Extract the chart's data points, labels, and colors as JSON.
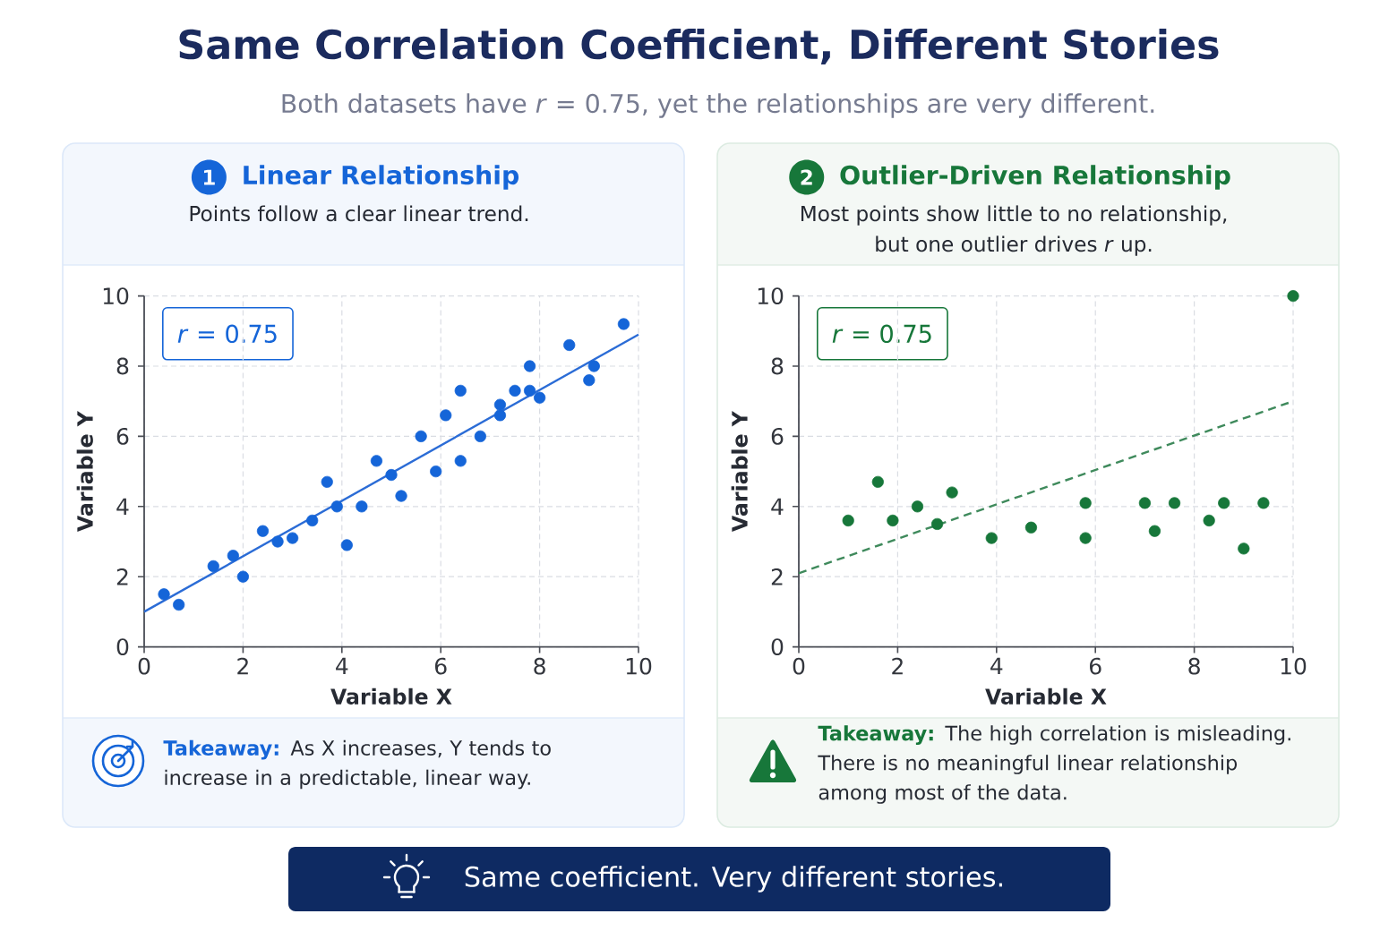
{
  "chart_data": [
    {
      "type": "other",
      "title": "Same Correlation Coefficient, Different Stories",
      "subtitle": "Both datasets have *r* = 0.75, yet the relationships are very different."
    },
    {
      "type": "scatter",
      "title": "Linear Relationship",
      "subtitle": "Points follow a clear linear trend.",
      "xlabel": "Variable X",
      "ylabel": "Variable Y",
      "xlim": [
        0,
        10
      ],
      "ylim": [
        0,
        10
      ],
      "xticks": [
        0,
        2,
        4,
        6,
        8,
        10
      ],
      "yticks": [
        0,
        2,
        4,
        6,
        8,
        10
      ],
      "grid": true,
      "annotations": [
        "1",
        "*r* = 0.75",
        "**Takeaway:** As X increases, Y tends to increase in a predictable, linear way."
      ],
      "series": [
        {
          "type": "scatter",
          "marker": "circle",
          "color": "#1565d8",
          "x": [
            0.4,
            0.7,
            1.4,
            1.8,
            2.0,
            2.4,
            2.7,
            3.0,
            3.4,
            3.7,
            3.9,
            4.1,
            4.4,
            4.7,
            5.0,
            5.2,
            5.6,
            5.9,
            6.1,
            6.4,
            6.4,
            6.8,
            7.2,
            7.2,
            7.5,
            7.8,
            7.8,
            8.0,
            8.6,
            9.0,
            9.1,
            9.7
          ],
          "values": [
            1.5,
            1.2,
            2.3,
            2.6,
            2.0,
            3.3,
            3.0,
            3.1,
            3.6,
            4.7,
            4.0,
            2.9,
            4.0,
            5.3,
            4.9,
            4.3,
            6.0,
            5.0,
            6.6,
            7.3,
            5.3,
            6.0,
            6.9,
            6.6,
            7.3,
            8.0,
            7.3,
            7.1,
            8.6,
            7.6,
            8.0,
            9.2
          ]
        },
        {
          "type": "line",
          "marker": "none",
          "line_style": "solid",
          "color": "#2b6cd6",
          "x": [
            0,
            10
          ],
          "values": [
            1.0,
            8.9
          ]
        }
      ]
    },
    {
      "type": "scatter",
      "title": "Outlier-Driven Relationship",
      "subtitle": "Most points show little to no relationship, but one outlier drives *r* up.",
      "xlabel": "Variable X",
      "ylabel": "Variable Y",
      "xlim": [
        0,
        10
      ],
      "ylim": [
        0,
        10
      ],
      "xticks": [
        0,
        2,
        4,
        6,
        8,
        10
      ],
      "yticks": [
        0,
        2,
        4,
        6,
        8,
        10
      ],
      "grid": true,
      "annotations": [
        "2",
        "*r* = 0.75",
        "**Takeaway:** The high correlation is misleading. There is no meaningful linear relationship among most of the data."
      ],
      "series": [
        {
          "type": "scatter",
          "marker": "circle",
          "color": "#17773a",
          "x": [
            1.0,
            1.6,
            1.9,
            2.4,
            2.8,
            3.1,
            3.9,
            4.7,
            5.8,
            5.8,
            7.0,
            7.2,
            7.6,
            8.3,
            8.6,
            9.0,
            9.4,
            10.0
          ],
          "values": [
            3.6,
            4.7,
            3.6,
            4.0,
            3.5,
            4.4,
            3.1,
            3.4,
            4.1,
            3.1,
            4.1,
            3.3,
            4.1,
            3.6,
            4.1,
            2.8,
            4.1,
            10.0
          ]
        },
        {
          "type": "line",
          "marker": "none",
          "line_style": "dashed",
          "color": "#3f8a5c",
          "x": [
            0,
            10
          ],
          "values": [
            2.1,
            7.0
          ]
        }
      ]
    },
    {
      "type": "other",
      "annotations": [
        "Same coefficient. Very different stories."
      ]
    }
  ]
}
